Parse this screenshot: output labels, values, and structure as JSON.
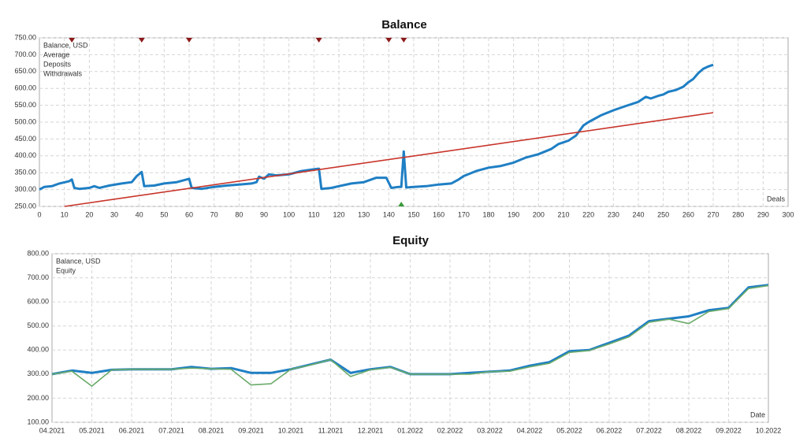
{
  "chart_data": [
    {
      "type": "line",
      "title": "Balance",
      "x_label": "Deals",
      "xlim": [
        0,
        300
      ],
      "xticks": [
        0,
        10,
        20,
        30,
        40,
        50,
        60,
        70,
        80,
        90,
        100,
        110,
        120,
        130,
        140,
        150,
        160,
        170,
        180,
        190,
        200,
        210,
        220,
        230,
        240,
        250,
        260,
        270,
        280,
        290,
        300
      ],
      "ylim": [
        250,
        750
      ],
      "yticks": [
        {
          "value": 250,
          "label": "250.00"
        },
        {
          "value": 300,
          "label": "300.00"
        },
        {
          "value": 350,
          "label": "350.00"
        },
        {
          "value": 400,
          "label": "400.00"
        },
        {
          "value": 450,
          "label": "450.00"
        },
        {
          "value": 500,
          "label": "500.00"
        },
        {
          "value": 550,
          "label": "550.00"
        },
        {
          "value": 600,
          "label": "600.00"
        },
        {
          "value": 650,
          "label": "650.00"
        },
        {
          "value": 700,
          "label": "700.00"
        },
        {
          "value": 750,
          "label": "750.00"
        }
      ],
      "grid": true,
      "series": [
        {
          "name": "Balance, USD",
          "color": "#1f7fc4",
          "x": [
            0,
            2,
            5,
            8,
            12,
            13,
            14,
            16,
            20,
            22,
            24,
            28,
            33,
            37,
            39,
            41,
            42,
            46,
            50,
            55,
            59,
            60,
            61,
            65,
            70,
            75,
            80,
            85,
            87,
            88,
            90,
            92,
            95,
            100,
            105,
            110,
            112,
            113,
            117,
            120,
            125,
            130,
            135,
            139,
            141,
            144,
            145,
            146,
            147,
            150,
            155,
            160,
            165,
            168,
            170,
            175,
            180,
            185,
            190,
            195,
            200,
            205,
            208,
            212,
            215,
            218,
            220,
            225,
            230,
            235,
            240,
            243,
            245,
            248,
            250,
            252,
            255,
            258,
            260,
            262,
            264,
            266,
            268,
            270
          ],
          "values": [
            300,
            308,
            310,
            318,
            325,
            330,
            305,
            302,
            305,
            310,
            305,
            312,
            318,
            322,
            340,
            352,
            310,
            312,
            318,
            322,
            330,
            332,
            305,
            302,
            308,
            312,
            315,
            318,
            322,
            338,
            332,
            345,
            342,
            345,
            355,
            360,
            362,
            302,
            305,
            310,
            318,
            322,
            335,
            335,
            305,
            308,
            308,
            413,
            306,
            308,
            310,
            315,
            318,
            330,
            340,
            355,
            365,
            370,
            380,
            395,
            405,
            420,
            435,
            445,
            460,
            490,
            500,
            520,
            535,
            548,
            560,
            575,
            570,
            578,
            582,
            590,
            595,
            605,
            618,
            628,
            645,
            658,
            665,
            670
          ]
        },
        {
          "name": "Average",
          "color": "#c8352b",
          "x": [
            10,
            270
          ],
          "values": [
            250,
            528
          ]
        },
        {
          "name": "Deposits",
          "color": "#3a9a3a",
          "marker": "bottom",
          "x": [
            145
          ]
        },
        {
          "name": "Withdrawals",
          "color": "#8b1a1a",
          "marker": "top",
          "x": [
            13,
            41,
            60,
            112,
            140,
            146
          ]
        }
      ]
    },
    {
      "type": "line",
      "title": "Equity",
      "x_label": "Date",
      "xticks": [
        "04.2021",
        "05.2021",
        "06.2021",
        "07.2021",
        "08.2021",
        "09.2021",
        "10.2021",
        "11.2021",
        "12.2021",
        "01.2022",
        "02.2022",
        "03.2022",
        "04.2022",
        "05.2022",
        "06.2022",
        "07.2022",
        "08.2022",
        "09.2022",
        "10.2022"
      ],
      "ylim": [
        100,
        800
      ],
      "yticks": [
        {
          "value": 100,
          "label": "100.00"
        },
        {
          "value": 200,
          "label": "200.00"
        },
        {
          "value": 300,
          "label": "300.00"
        },
        {
          "value": 400,
          "label": "400.00"
        },
        {
          "value": 500,
          "label": "500.00"
        },
        {
          "value": 600,
          "label": "600.00"
        },
        {
          "value": 700,
          "label": "700.00"
        },
        {
          "value": 800,
          "label": "800.00"
        }
      ],
      "grid": true,
      "series": [
        {
          "name": "Balance, USD",
          "color": "#1f7fc4",
          "values": [
            300,
            315,
            305,
            318,
            320,
            320,
            320,
            330,
            322,
            325,
            305,
            305,
            320,
            340,
            360,
            305,
            320,
            330,
            300,
            300,
            300,
            305,
            310,
            315,
            335,
            350,
            395,
            400,
            430,
            460,
            520,
            530,
            540,
            565,
            575,
            660,
            670
          ]
        },
        {
          "name": "Equity",
          "color": "#6aaa6a",
          "values": [
            300,
            312,
            250,
            318,
            320,
            320,
            320,
            325,
            322,
            320,
            255,
            260,
            320,
            338,
            360,
            290,
            318,
            328,
            300,
            300,
            300,
            300,
            310,
            312,
            330,
            345,
            390,
            398,
            425,
            455,
            515,
            528,
            510,
            560,
            572,
            655,
            668
          ]
        }
      ]
    }
  ]
}
